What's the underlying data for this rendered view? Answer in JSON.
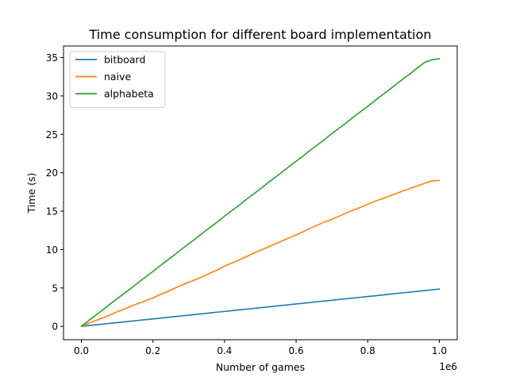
{
  "chart_data": {
    "type": "line",
    "title": "Time consumption for different board implementation",
    "xlabel": "Number of games",
    "ylabel": "Time (s)",
    "x_offset_label": "1e6",
    "xlim": [
      -0.05,
      1.05
    ],
    "ylim": [
      -1.74,
      36.5
    ],
    "x_ticks": [
      0.0,
      0.2,
      0.4,
      0.6,
      0.8,
      1.0
    ],
    "x_tick_labels": [
      "0.0",
      "0.2",
      "0.4",
      "0.6",
      "0.8",
      "1.0"
    ],
    "y_ticks": [
      0,
      5,
      10,
      15,
      20,
      25,
      30,
      35
    ],
    "y_tick_labels": [
      "0",
      "5",
      "10",
      "15",
      "20",
      "25",
      "30",
      "35"
    ],
    "grid": false,
    "legend_position": "top-left",
    "x": [
      0.0,
      0.02,
      0.04,
      0.06,
      0.08,
      0.1,
      0.12,
      0.14,
      0.16,
      0.18,
      0.2,
      0.22,
      0.24,
      0.26,
      0.28,
      0.3,
      0.32,
      0.34,
      0.36,
      0.38,
      0.4,
      0.42,
      0.44,
      0.46,
      0.48,
      0.5,
      0.52,
      0.54,
      0.56,
      0.58,
      0.6,
      0.62,
      0.64,
      0.66,
      0.68,
      0.7,
      0.72,
      0.74,
      0.76,
      0.78,
      0.8,
      0.82,
      0.84,
      0.86,
      0.88,
      0.9,
      0.92,
      0.94,
      0.96,
      0.98,
      1.0
    ],
    "series": [
      {
        "name": "bitboard",
        "color": "#1f77b4",
        "values": [
          0.0,
          0.1,
          0.2,
          0.29,
          0.39,
          0.49,
          0.58,
          0.68,
          0.78,
          0.88,
          0.97,
          1.07,
          1.17,
          1.26,
          1.36,
          1.46,
          1.56,
          1.65,
          1.75,
          1.85,
          1.94,
          2.04,
          2.14,
          2.24,
          2.33,
          2.43,
          2.53,
          2.62,
          2.72,
          2.82,
          2.92,
          3.01,
          3.11,
          3.21,
          3.3,
          3.4,
          3.5,
          3.6,
          3.69,
          3.79,
          3.89,
          3.98,
          4.08,
          4.18,
          4.28,
          4.37,
          4.47,
          4.57,
          4.66,
          4.76,
          4.86
        ]
      },
      {
        "name": "naive",
        "color": "#ff7f0e",
        "values": [
          0.0,
          0.4,
          0.75,
          1.1,
          1.5,
          1.9,
          2.25,
          2.65,
          3.0,
          3.35,
          3.7,
          4.15,
          4.5,
          4.95,
          5.35,
          5.75,
          6.1,
          6.5,
          6.95,
          7.35,
          7.85,
          8.25,
          8.65,
          9.05,
          9.5,
          9.9,
          10.3,
          10.7,
          11.1,
          11.5,
          11.9,
          12.35,
          12.8,
          13.2,
          13.6,
          13.95,
          14.35,
          14.75,
          15.15,
          15.5,
          15.9,
          16.3,
          16.6,
          16.95,
          17.3,
          17.65,
          18.0,
          18.3,
          18.65,
          18.95,
          19.0
        ]
      },
      {
        "name": "alphabeta",
        "color": "#2ca02c",
        "values": [
          0.0,
          0.75,
          1.45,
          2.15,
          2.9,
          3.6,
          4.3,
          5.0,
          5.75,
          6.45,
          7.15,
          7.9,
          8.6,
          9.3,
          10.05,
          10.75,
          11.45,
          12.2,
          12.9,
          13.6,
          14.35,
          15.05,
          15.75,
          16.5,
          17.2,
          17.9,
          18.65,
          19.35,
          20.05,
          20.8,
          21.5,
          22.2,
          22.95,
          23.65,
          24.35,
          25.1,
          25.8,
          26.5,
          27.25,
          27.95,
          28.65,
          29.4,
          30.1,
          30.8,
          31.55,
          32.25,
          32.95,
          33.7,
          34.4,
          34.7,
          34.85
        ]
      }
    ]
  }
}
